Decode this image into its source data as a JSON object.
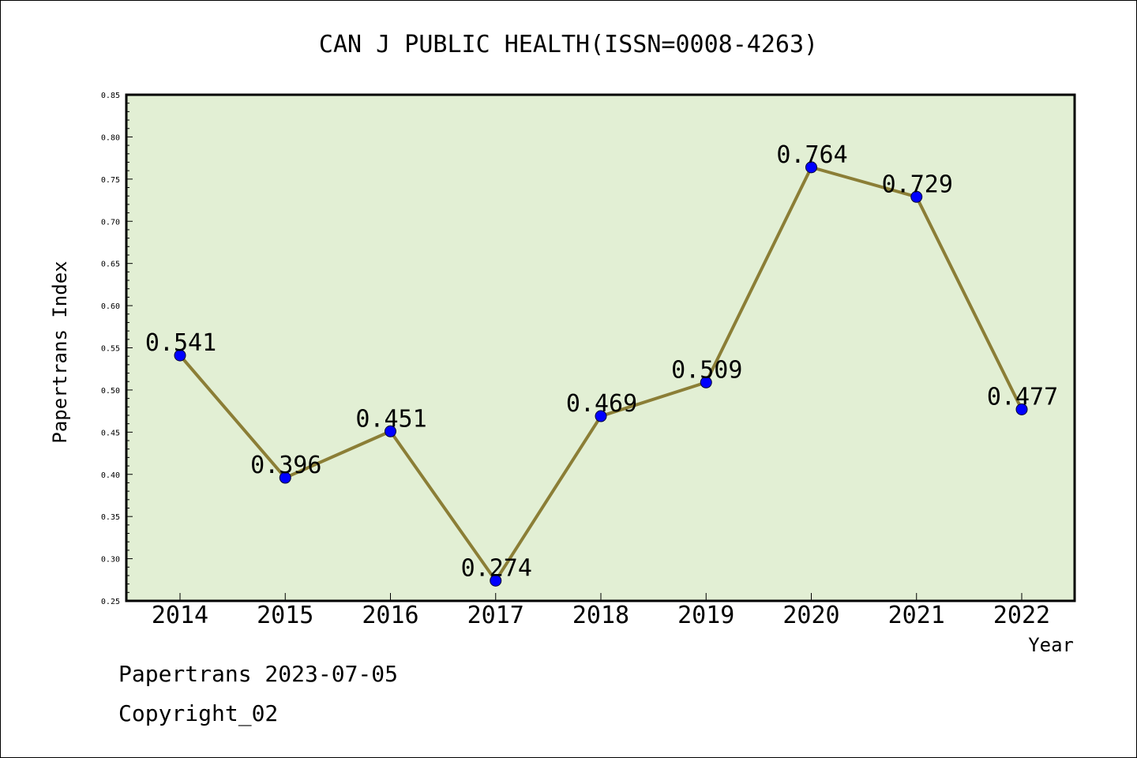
{
  "chart_data": {
    "type": "line",
    "title": "CAN J PUBLIC HEALTH(ISSN=0008-4263)",
    "xlabel": "Year",
    "ylabel": "Papertrans Index",
    "categories": [
      "2014",
      "2015",
      "2016",
      "2017",
      "2018",
      "2019",
      "2020",
      "2021",
      "2022"
    ],
    "values": [
      0.541,
      0.396,
      0.451,
      0.274,
      0.469,
      0.509,
      0.764,
      0.729,
      0.477
    ],
    "data_labels": [
      "0.541",
      "0.396",
      "0.451",
      "0.274",
      "0.469",
      "0.509",
      "0.764",
      "0.729",
      "0.477"
    ],
    "ylim": [
      0.25,
      0.85
    ],
    "yticks": [
      "0.25",
      "0.30",
      "0.35",
      "0.40",
      "0.45",
      "0.50",
      "0.55",
      "0.60",
      "0.65",
      "0.70",
      "0.75",
      "0.80",
      "0.85"
    ],
    "grid": false,
    "legend": "none",
    "colors": {
      "plot_background": "#e2efd4",
      "line": "#8b7e36",
      "marker": "#0000ff"
    }
  },
  "footer": {
    "line1": "Papertrans 2023-07-05",
    "line2": "Copyright_02"
  }
}
